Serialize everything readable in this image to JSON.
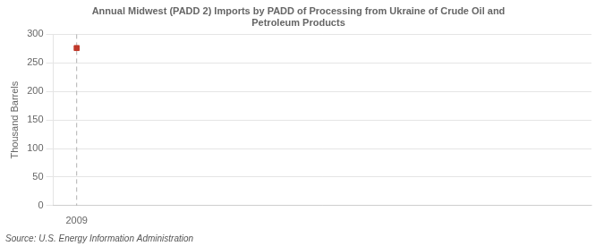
{
  "chart_data": {
    "type": "scatter",
    "title": "Annual Midwest (PADD 2) Imports by PADD of Processing from Ukraine of Crude Oil and\nPetroleum Products",
    "ylabel": "Thousand Barrels",
    "source": "Source: U.S. Energy Information Administration",
    "x": [
      2009
    ],
    "values": [
      276
    ],
    "color": "#c0392b",
    "marker": "square",
    "xlim": [
      2008.5,
      2020
    ],
    "xticks": [
      2009
    ],
    "ylim": [
      0,
      300
    ],
    "yticks": [
      0,
      50,
      100,
      150,
      200,
      250,
      300
    ],
    "grid": "y",
    "vlines": [
      {
        "x": 2009,
        "color": "#b0b0b0",
        "line_style": "dashed"
      }
    ],
    "legend": false
  }
}
